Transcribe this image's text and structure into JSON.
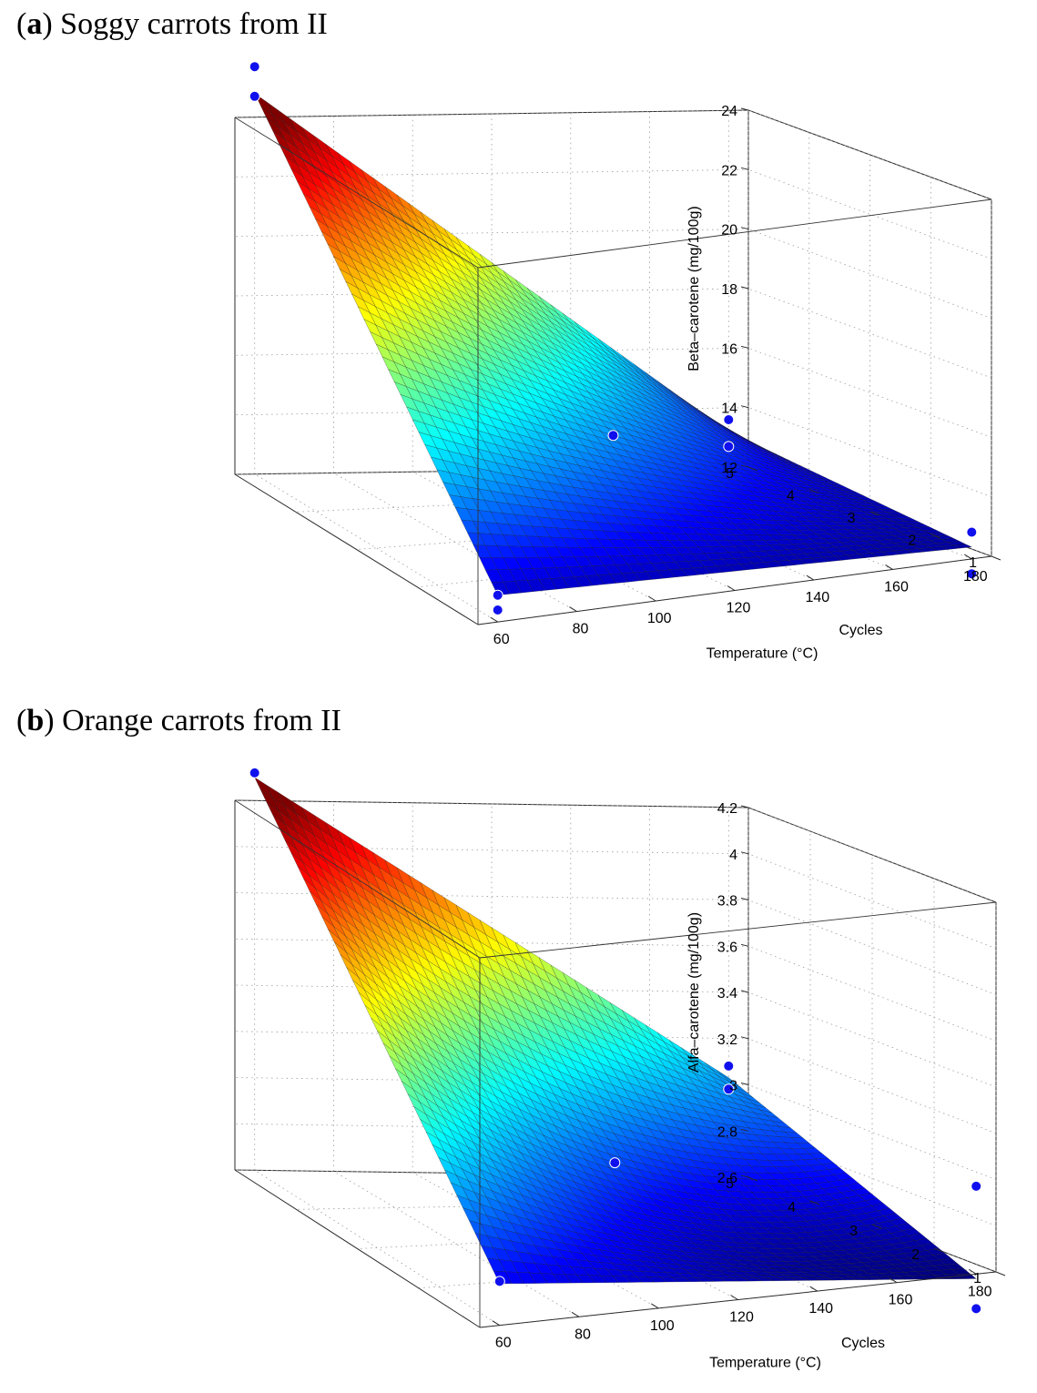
{
  "chart_data": [
    {
      "type": "surface3d",
      "panel_letter": "a",
      "title": "Soggy carrots from II",
      "zlabel": "Beta–carotene (mg/100g)",
      "xlabel": "Temperature (°C)",
      "ylabel": "Cycles",
      "x_ticks": [
        "60",
        "80",
        "100",
        "120",
        "140",
        "160",
        "180"
      ],
      "y_ticks": [
        "1",
        "2",
        "3",
        "4",
        "5"
      ],
      "z_ticks": [
        "12",
        "14",
        "16",
        "18",
        "20",
        "22",
        "24"
      ],
      "xlim": [
        55,
        185
      ],
      "ylim": [
        1,
        5
      ],
      "zlim": [
        12,
        24
      ],
      "grid": true,
      "colormap": "jet",
      "surface_corners": [
        {
          "temperature": 180,
          "cycles": 1,
          "value": 12.4
        },
        {
          "temperature": 180,
          "cycles": 5,
          "value": 13.2
        },
        {
          "temperature": 60,
          "cycles": 1,
          "value": 12.9
        },
        {
          "temperature": 60,
          "cycles": 5,
          "value": 24.8
        }
      ],
      "surface_center": {
        "temperature": 120,
        "cycles": 3,
        "value": 15.2
      },
      "points": [
        {
          "temperature": 180,
          "cycles": 1,
          "value": 12.9
        },
        {
          "temperature": 180,
          "cycles": 1,
          "value": 11.5
        },
        {
          "temperature": 180,
          "cycles": 5,
          "value": 13.6
        },
        {
          "temperature": 180,
          "cycles": 5,
          "value": 12.7
        },
        {
          "temperature": 60,
          "cycles": 5,
          "value": 25.7
        },
        {
          "temperature": 60,
          "cycles": 5,
          "value": 24.7
        },
        {
          "temperature": 60,
          "cycles": 1,
          "value": 12.9
        },
        {
          "temperature": 60,
          "cycles": 1,
          "value": 12.4
        },
        {
          "temperature": 120,
          "cycles": 3,
          "value": 15.2
        }
      ]
    },
    {
      "type": "surface3d",
      "panel_letter": "b",
      "title": "Orange carrots from II",
      "zlabel": "Alfa–carotene (mg/100g)",
      "xlabel": "Temperature (°C)",
      "ylabel": "Cycles",
      "x_ticks": [
        "60",
        "80",
        "100",
        "120",
        "140",
        "160",
        "180"
      ],
      "y_ticks": [
        "1",
        "2",
        "3",
        "4",
        "5"
      ],
      "z_ticks": [
        "2.6",
        "2.8",
        "3",
        "3.2",
        "3.4",
        "3.6",
        "3.8",
        "4",
        "4.2"
      ],
      "xlim": [
        55,
        185
      ],
      "ylim": [
        1,
        5
      ],
      "zlim": [
        2.6,
        4.2
      ],
      "grid": true,
      "colormap": "jet",
      "surface_corners": [
        {
          "temperature": 180,
          "cycles": 1,
          "value": 2.58
        },
        {
          "temperature": 180,
          "cycles": 5,
          "value": 3.03
        },
        {
          "temperature": 60,
          "cycles": 1,
          "value": 2.78
        },
        {
          "temperature": 60,
          "cycles": 5,
          "value": 4.3
        }
      ],
      "surface_center": {
        "temperature": 120,
        "cycles": 3,
        "value": 2.92
      },
      "points": [
        {
          "temperature": 180,
          "cycles": 1,
          "value": 2.98
        },
        {
          "temperature": 180,
          "cycles": 1,
          "value": 2.45
        },
        {
          "temperature": 180,
          "cycles": 5,
          "value": 3.08
        },
        {
          "temperature": 180,
          "cycles": 5,
          "value": 2.98
        },
        {
          "temperature": 60,
          "cycles": 5,
          "value": 4.32
        },
        {
          "temperature": 60,
          "cycles": 1,
          "value": 2.79
        },
        {
          "temperature": 120,
          "cycles": 3,
          "value": 2.92
        }
      ]
    }
  ]
}
